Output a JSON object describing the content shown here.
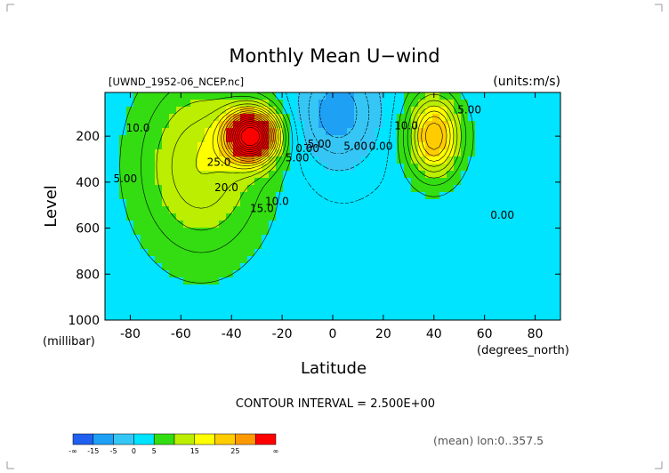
{
  "chart_data": {
    "type": "heatmap",
    "title": "Monthly Mean U−wind",
    "subtitle_left": "[UWND_1952-06_NCEP.nc]",
    "subtitle_right": "(units:m/s)",
    "xlabel": "Latitude",
    "ylabel": "Level",
    "x_unit": "(degrees_north)",
    "y_unit": "(millibar)",
    "xlim": [
      -90,
      90
    ],
    "ylim": [
      1000,
      10
    ],
    "x_ticks": [
      "-80",
      "-60",
      "-40",
      "-20",
      "0",
      "20",
      "40",
      "60",
      "80"
    ],
    "x_tick_values": [
      -80,
      -60,
      -40,
      -20,
      0,
      20,
      40,
      60,
      80
    ],
    "y_ticks": [
      "200",
      "400",
      "600",
      "800",
      "1000"
    ],
    "y_tick_values": [
      200,
      400,
      600,
      800,
      1000
    ],
    "contour_interval_text": "CONTOUR INTERVAL = 2.500E+00",
    "footer_note": "(mean) lon:0..357.5",
    "contour_labels": [
      {
        "text": "10.0",
        "x": -77,
        "y": 180
      },
      {
        "text": "5.00",
        "x": -82,
        "y": 400
      },
      {
        "text": "25.0",
        "x": -45,
        "y": 330
      },
      {
        "text": "20.0",
        "x": -42,
        "y": 440
      },
      {
        "text": "15.0",
        "x": -28,
        "y": 530
      },
      {
        "text": "10.0",
        "x": -22,
        "y": 500
      },
      {
        "text": "5.00",
        "x": -14,
        "y": 310
      },
      {
        "text": "0.00",
        "x": -10,
        "y": 270
      },
      {
        "text": "-5.00",
        "x": -6,
        "y": 250
      },
      {
        "text": "5.00",
        "x": 9,
        "y": 260
      },
      {
        "text": "0.00",
        "x": 19,
        "y": 260
      },
      {
        "text": "10.0",
        "x": 29,
        "y": 170
      },
      {
        "text": "5.00",
        "x": 54,
        "y": 100
      },
      {
        "text": "0.00",
        "x": 67,
        "y": 560
      }
    ],
    "jets": [
      {
        "name": "southern_subtropical_jet",
        "lat": -32,
        "level": 200,
        "max": 42,
        "sx": 10,
        "sy": 110
      },
      {
        "name": "southern_broad_westerlies",
        "lat": -52,
        "level": 330,
        "max": 12,
        "sx": 24,
        "sy": 380
      },
      {
        "name": "northern_subtropical_jet",
        "lat": 40,
        "level": 200,
        "max": 22,
        "sx": 10,
        "sy": 170
      },
      {
        "name": "tropical_easterlies",
        "lat": 2,
        "level": 100,
        "max": -10,
        "sx": 16,
        "sy": 230
      }
    ],
    "colorbar": {
      "labels": [
        "-∞",
        "-15",
        "-5",
        "0",
        "5",
        "15",
        "25",
        "∞"
      ],
      "bins": [
        {
          "lo": -1000,
          "hi": -15,
          "color": "#1f60f0"
        },
        {
          "lo": -15,
          "hi": -10,
          "color": "#1ea0f5"
        },
        {
          "lo": -10,
          "hi": -5,
          "color": "#36c6f5"
        },
        {
          "lo": -5,
          "hi": 0,
          "color": "#00e4ff"
        },
        {
          "lo": 0,
          "hi": 5,
          "color": "#33dd11"
        },
        {
          "lo": 5,
          "hi": 10,
          "color": "#bbee00"
        },
        {
          "lo": 10,
          "hi": 15,
          "color": "#ffff00"
        },
        {
          "lo": 15,
          "hi": 20,
          "color": "#ffcc00"
        },
        {
          "lo": 20,
          "hi": 25,
          "color": "#ff9900"
        },
        {
          "lo": 25,
          "hi": 1000,
          "color": "#ff0000"
        }
      ]
    }
  }
}
